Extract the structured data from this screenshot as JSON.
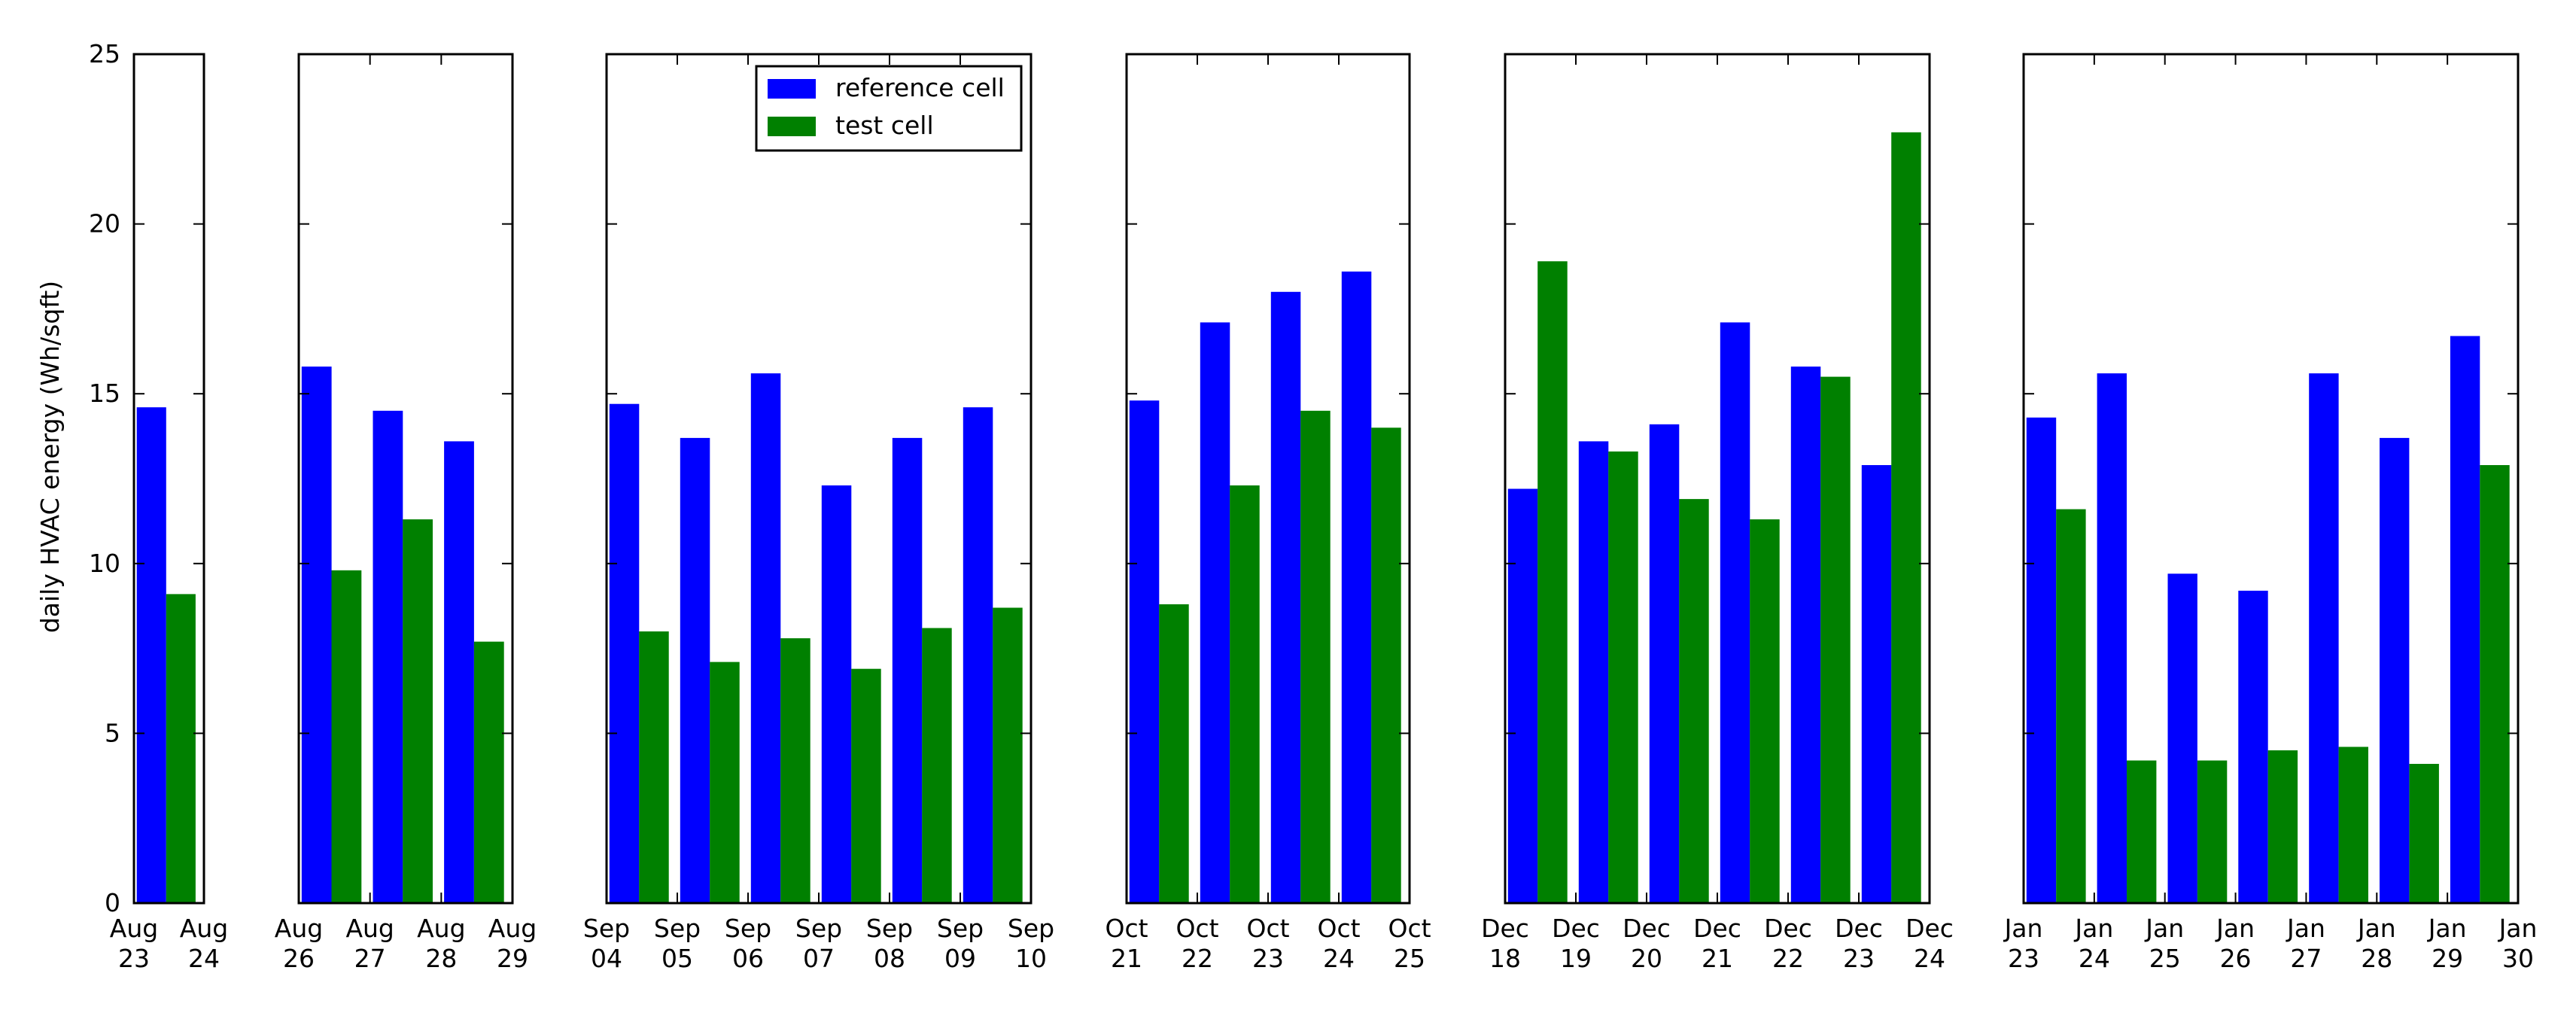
{
  "chart_data": {
    "type": "bar",
    "ylabel": "daily HVAC energy (Wh/sqft)",
    "ylim": [
      0,
      25
    ],
    "yticks": [
      "0",
      "5",
      "10",
      "15",
      "20",
      "25"
    ],
    "legend": {
      "placement": "top-right of third panel",
      "entries": [
        "reference cell",
        "test cell"
      ]
    },
    "grid": false,
    "colors": {
      "reference cell": "#0000ff",
      "test cell": "#008000"
    },
    "panels": [
      {
        "x_range": [
          "Aug 23",
          "Aug 24"
        ],
        "tick_labels": [
          [
            "Aug",
            "23"
          ],
          [
            "Aug",
            "24"
          ]
        ],
        "days": [
          "Aug 23"
        ],
        "series": [
          {
            "name": "reference cell",
            "values": [
              14.6
            ]
          },
          {
            "name": "test cell",
            "values": [
              9.1
            ]
          }
        ]
      },
      {
        "x_range": [
          "Aug 26",
          "Aug 29"
        ],
        "tick_labels": [
          [
            "Aug",
            "26"
          ],
          [
            "Aug",
            "27"
          ],
          [
            "Aug",
            "28"
          ],
          [
            "Aug",
            "29"
          ]
        ],
        "days": [
          "Aug 26",
          "Aug 27",
          "Aug 28"
        ],
        "series": [
          {
            "name": "reference cell",
            "values": [
              15.8,
              14.5,
              13.6
            ]
          },
          {
            "name": "test cell",
            "values": [
              9.8,
              11.3,
              7.7
            ]
          }
        ]
      },
      {
        "x_range": [
          "Sep 04",
          "Sep 10"
        ],
        "tick_labels": [
          [
            "Sep",
            "04"
          ],
          [
            "Sep",
            "05"
          ],
          [
            "Sep",
            "06"
          ],
          [
            "Sep",
            "07"
          ],
          [
            "Sep",
            "08"
          ],
          [
            "Sep",
            "09"
          ],
          [
            "Sep",
            "10"
          ]
        ],
        "days": [
          "Sep 04",
          "Sep 05",
          "Sep 06",
          "Sep 07",
          "Sep 08",
          "Sep 09"
        ],
        "series": [
          {
            "name": "reference cell",
            "values": [
              14.7,
              13.7,
              15.6,
              12.3,
              13.7,
              14.6
            ]
          },
          {
            "name": "test cell",
            "values": [
              8.0,
              7.1,
              7.8,
              6.9,
              8.1,
              8.7
            ]
          }
        ]
      },
      {
        "x_range": [
          "Oct 21",
          "Oct 25"
        ],
        "tick_labels": [
          [
            "Oct",
            "21"
          ],
          [
            "Oct",
            "22"
          ],
          [
            "Oct",
            "23"
          ],
          [
            "Oct",
            "24"
          ],
          [
            "Oct",
            "25"
          ]
        ],
        "days": [
          "Oct 21",
          "Oct 22",
          "Oct 23",
          "Oct 24"
        ],
        "series": [
          {
            "name": "reference cell",
            "values": [
              14.8,
              17.1,
              18.0,
              18.6
            ]
          },
          {
            "name": "test cell",
            "values": [
              8.8,
              12.3,
              14.5,
              14.0
            ]
          }
        ]
      },
      {
        "x_range": [
          "Dec 18",
          "Dec 24"
        ],
        "tick_labels": [
          [
            "Dec",
            "18"
          ],
          [
            "Dec",
            "19"
          ],
          [
            "Dec",
            "20"
          ],
          [
            "Dec",
            "21"
          ],
          [
            "Dec",
            "22"
          ],
          [
            "Dec",
            "23"
          ],
          [
            "Dec",
            "24"
          ]
        ],
        "days": [
          "Dec 18",
          "Dec 19",
          "Dec 20",
          "Dec 21",
          "Dec 22",
          "Dec 23"
        ],
        "series": [
          {
            "name": "reference cell",
            "values": [
              12.2,
              13.6,
              14.1,
              17.1,
              15.8,
              12.9
            ]
          },
          {
            "name": "test cell",
            "values": [
              18.9,
              13.3,
              11.9,
              11.3,
              15.5,
              22.7
            ]
          }
        ]
      },
      {
        "x_range": [
          "Jan 23",
          "Jan 30"
        ],
        "tick_labels": [
          [
            "Jan",
            "23"
          ],
          [
            "Jan",
            "24"
          ],
          [
            "Jan",
            "25"
          ],
          [
            "Jan",
            "26"
          ],
          [
            "Jan",
            "27"
          ],
          [
            "Jan",
            "28"
          ],
          [
            "Jan",
            "29"
          ],
          [
            "Jan",
            "30"
          ]
        ],
        "days": [
          "Jan 23",
          "Jan 24",
          "Jan 25",
          "Jan 26",
          "Jan 27",
          "Jan 28",
          "Jan 29"
        ],
        "series": [
          {
            "name": "reference cell",
            "values": [
              14.3,
              15.6,
              9.7,
              9.2,
              15.6,
              13.7,
              16.7
            ]
          },
          {
            "name": "test cell",
            "values": [
              11.6,
              4.2,
              4.2,
              4.5,
              4.6,
              4.1,
              12.9
            ]
          }
        ]
      }
    ]
  }
}
